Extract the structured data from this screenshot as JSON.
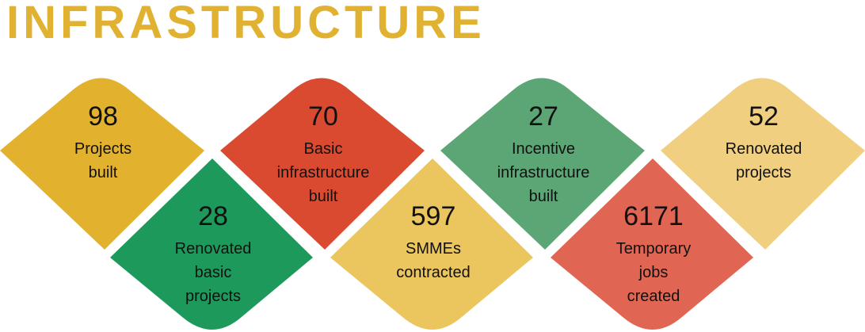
{
  "title": "INFRASTRUCTURE",
  "colors": {
    "title": "#E1B232",
    "dark_yellow": "#E2B22F",
    "red": "#D94A30",
    "green": "#5BA674",
    "pale_yellow": "#F0CF80",
    "dark_green": "#1D9A5B",
    "light_yellow": "#EBC55D",
    "light_red": "#E06553"
  },
  "stats": [
    {
      "value": "98",
      "label": "Projects\nbuilt",
      "color_key": "dark_yellow"
    },
    {
      "value": "70",
      "label": "Basic\ninfrastructure\nbuilt",
      "color_key": "red"
    },
    {
      "value": "27",
      "label": "Incentive\ninfrastructure\nbuilt",
      "color_key": "green"
    },
    {
      "value": "52",
      "label": "Renovated\nprojects",
      "color_key": "pale_yellow"
    },
    {
      "value": "28",
      "label": "Renovated\nbasic\nprojects",
      "color_key": "dark_green"
    },
    {
      "value": "597",
      "label": "SMMEs\ncontracted",
      "color_key": "light_yellow"
    },
    {
      "value": "6171",
      "label": "Temporary\njobs\ncreated",
      "color_key": "light_red"
    }
  ]
}
